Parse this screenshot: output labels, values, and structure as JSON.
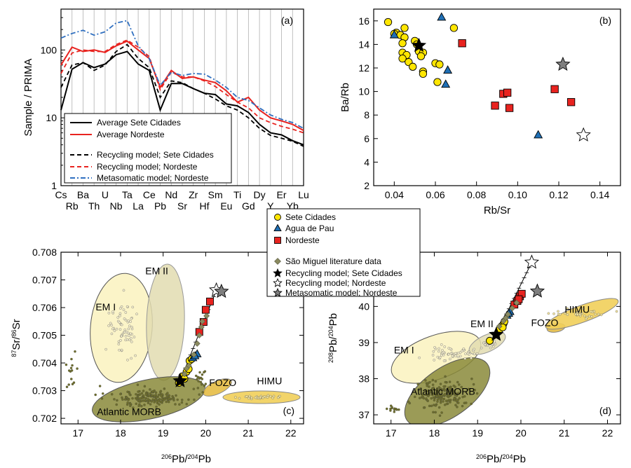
{
  "chart_data": [
    {
      "panel": "a",
      "panel_label": "(a)",
      "type": "line",
      "ylabel": "Sample / PRIMA",
      "yscale": "log",
      "ylim": [
        1,
        400
      ],
      "yticks": [
        "1",
        "10",
        "100"
      ],
      "categories": [
        "Cs",
        "Rb",
        "Ba",
        "Th",
        "U",
        "Nb",
        "Ta",
        "La",
        "Ce",
        "Pb",
        "Nd",
        "Sr",
        "Zr",
        "Hf",
        "Sm",
        "Eu",
        "Ti",
        "Gd",
        "Dy",
        "Y",
        "Er",
        "Yb",
        "Lu"
      ],
      "vertical_grid": true,
      "legend_position": "bottom-left",
      "series": [
        {
          "name": "Average Sete Cidades",
          "color": "#000000",
          "dash": "solid",
          "values": [
            13,
            52,
            65,
            55,
            62,
            85,
            95,
            62,
            50,
            13,
            32,
            32,
            27,
            23,
            22,
            16,
            15,
            12,
            8,
            6,
            5.6,
            4.6,
            4
          ]
        },
        {
          "name": "Average Nordeste",
          "color": "#e8231f",
          "dash": "solid",
          "values": [
            60,
            110,
            95,
            100,
            92,
            115,
            135,
            100,
            75,
            28,
            50,
            38,
            40,
            36,
            33,
            25,
            17,
            20,
            13,
            10,
            9,
            8,
            6.5
          ]
        },
        {
          "name": "Recycling model; Sete Cidades",
          "color": "#000000",
          "dash": "dashed",
          "values": [
            28,
            60,
            65,
            50,
            60,
            95,
            120,
            75,
            55,
            20,
            35,
            33,
            27,
            23,
            19,
            15,
            13,
            10,
            7,
            5.5,
            5,
            4.5,
            3.8
          ]
        },
        {
          "name": "Recycling model; Nordeste",
          "color": "#e8231f",
          "dash": "dashed",
          "values": [
            45,
            90,
            100,
            95,
            95,
            120,
            140,
            110,
            80,
            26,
            47,
            40,
            40,
            35,
            29,
            22,
            17,
            14,
            10,
            8.5,
            7.5,
            6.8,
            6
          ]
        },
        {
          "name": "Metasomatic model; Nordeste",
          "color": "#2f6fc0",
          "dash": "dashdot",
          "values": [
            150,
            175,
            195,
            165,
            185,
            250,
            270,
            115,
            75,
            30,
            47,
            42,
            45,
            44,
            36,
            28,
            20,
            18,
            14,
            11,
            9.5,
            8.5,
            7
          ]
        }
      ]
    },
    {
      "panel": "b",
      "panel_label": "(b)",
      "type": "scatter",
      "xlabel": "Rb/Sr",
      "ylabel": "Ba/Rb",
      "xlim": [
        0.03,
        0.15
      ],
      "ylim": [
        2,
        17
      ],
      "xticks": [
        "0.04",
        "0.06",
        "0.08",
        "0.10",
        "0.12",
        "0.14"
      ],
      "yticks": [
        "2",
        "4",
        "6",
        "8",
        "10",
        "12",
        "14",
        "16"
      ],
      "series": [
        {
          "name": "Sete Cidades",
          "marker": "circle",
          "color": "#ffe600",
          "points": [
            [
              0.037,
              15.9
            ],
            [
              0.041,
              15.0
            ],
            [
              0.04,
              14.9
            ],
            [
              0.045,
              15.4
            ],
            [
              0.043,
              14.8
            ],
            [
              0.045,
              14.6
            ],
            [
              0.044,
              14.1
            ],
            [
              0.044,
              13.3
            ],
            [
              0.046,
              13.1
            ],
            [
              0.044,
              12.8
            ],
            [
              0.047,
              12.5
            ],
            [
              0.049,
              12.1
            ],
            [
              0.05,
              14.3
            ],
            [
              0.051,
              14.0
            ],
            [
              0.052,
              13.4
            ],
            [
              0.054,
              13.3
            ],
            [
              0.053,
              13.0
            ],
            [
              0.054,
              11.7
            ],
            [
              0.054,
              11.5
            ],
            [
              0.06,
              12.4
            ],
            [
              0.062,
              12.3
            ],
            [
              0.061,
              10.8
            ],
            [
              0.069,
              15.4
            ]
          ]
        },
        {
          "name": "Agua de Pau",
          "marker": "triangle",
          "color": "#1f6fb5",
          "points": [
            [
              0.04,
              14.8
            ],
            [
              0.063,
              16.3
            ],
            [
              0.066,
              11.8
            ],
            [
              0.065,
              10.6
            ],
            [
              0.11,
              6.3
            ]
          ]
        },
        {
          "name": "Nordeste",
          "marker": "square",
          "color": "#e8231f",
          "points": [
            [
              0.073,
              14.1
            ],
            [
              0.089,
              8.8
            ],
            [
              0.093,
              9.8
            ],
            [
              0.095,
              9.9
            ],
            [
              0.096,
              8.6
            ],
            [
              0.118,
              10.2
            ],
            [
              0.126,
              9.1
            ]
          ]
        },
        {
          "name": "Recycling model; Sete Cidades",
          "marker": "star",
          "color": "#000000",
          "points": [
            [
              0.052,
              13.9
            ]
          ]
        },
        {
          "name": "Recycling model; Nordeste",
          "marker": "star",
          "color": "#ffffff",
          "points": [
            [
              0.132,
              6.3
            ]
          ]
        },
        {
          "name": "Metasomatic model; Nordeste",
          "marker": "star",
          "color": "#7f7f7f",
          "points": [
            [
              0.122,
              12.3
            ]
          ]
        }
      ]
    },
    {
      "panel": "c",
      "panel_label": "(c)",
      "type": "scatter",
      "xlabel_base": "Pb/",
      "xlabel_parts": [
        "206",
        "Pb/",
        "204",
        "Pb"
      ],
      "ylabel_parts": [
        "87",
        "Sr/",
        "86",
        "Sr"
      ],
      "xlim": [
        16.6,
        22.3
      ],
      "ylim": [
        0.7018,
        0.708
      ],
      "xticks": [
        "17",
        "18",
        "19",
        "20",
        "21",
        "22"
      ],
      "yticks": [
        "0.702",
        "0.703",
        "0.704",
        "0.705",
        "0.706",
        "0.707",
        "0.708"
      ],
      "field_labels": [
        {
          "text": "EM I",
          "x": 17.65,
          "y": 0.7059
        },
        {
          "text": "EM II",
          "x": 18.85,
          "y": 0.7072
        },
        {
          "text": "FOZO",
          "x": 20.4,
          "y": 0.70317
        },
        {
          "text": "HIMU",
          "x": 21.5,
          "y": 0.70323
        },
        {
          "text": "Atlantic MORB",
          "x": 18.2,
          "y": 0.70212
        }
      ],
      "series": [
        {
          "name": "Sete Cidades",
          "marker": "circle",
          "color": "#ffe600",
          "points": [
            [
              19.37,
              0.70328
            ],
            [
              19.45,
              0.70352
            ],
            [
              19.55,
              0.70368
            ],
            [
              19.6,
              0.70378
            ],
            [
              19.62,
              0.70408
            ],
            [
              19.67,
              0.70414
            ],
            [
              19.5,
              0.70343
            ]
          ]
        },
        {
          "name": "Agua de Pau",
          "marker": "triangle",
          "color": "#1f6fb5",
          "points": [
            [
              19.7,
              0.70418
            ],
            [
              19.8,
              0.70432
            ],
            [
              19.75,
              0.70425
            ]
          ]
        },
        {
          "name": "Nordeste",
          "marker": "square",
          "color": "#e8231f",
          "points": [
            [
              19.85,
              0.70512
            ],
            [
              19.95,
              0.70548
            ],
            [
              20.0,
              0.70592
            ],
            [
              20.1,
              0.70622
            ]
          ]
        },
        {
          "name": "São Miguel literature data",
          "marker": "diamond",
          "color": "#8a8a60",
          "points": [
            [
              19.5,
              0.7036
            ],
            [
              19.6,
              0.7039
            ],
            [
              19.72,
              0.7043
            ],
            [
              19.8,
              0.7047
            ],
            [
              19.9,
              0.7053
            ],
            [
              19.92,
              0.7055
            ],
            [
              20.02,
              0.7057
            ],
            [
              19.55,
              0.7038
            ],
            [
              19.85,
              0.705
            ]
          ]
        },
        {
          "name": "Recycling model; Sete Cidades",
          "marker": "star",
          "color": "#000000",
          "points": [
            [
              19.4,
              0.70335
            ]
          ]
        },
        {
          "name": "Recycling model; Nordeste",
          "marker": "star",
          "color": "#ffffff",
          "points": [
            [
              20.25,
              0.70663
            ]
          ]
        },
        {
          "name": "Metasomatic model; Nordeste",
          "marker": "star",
          "color": "#7f7f7f",
          "points": [
            [
              20.37,
              0.70658
            ]
          ]
        }
      ]
    },
    {
      "panel": "d",
      "panel_label": "(d)",
      "type": "scatter",
      "xlabel_parts": [
        "206",
        "Pb/",
        "204",
        "Pb"
      ],
      "ylabel_parts": [
        "208",
        "Pb/",
        "204",
        "Pb"
      ],
      "xlim": [
        16.6,
        22.3
      ],
      "ylim": [
        36.75,
        41.5
      ],
      "xticks": [
        "17",
        "18",
        "19",
        "20",
        "21",
        "22"
      ],
      "yticks": [
        "37",
        "38",
        "39",
        "40"
      ],
      "field_labels": [
        {
          "text": "EM I",
          "x": 17.3,
          "y": 38.7
        },
        {
          "text": "EM II",
          "x": 19.1,
          "y": 39.43
        },
        {
          "text": "FOZO",
          "x": 20.55,
          "y": 39.45
        },
        {
          "text": "HIMU",
          "x": 21.3,
          "y": 39.82
        },
        {
          "text": "Atlantic MORB",
          "x": 18.2,
          "y": 37.55
        }
      ],
      "series": [
        {
          "name": "Sete Cidades",
          "marker": "circle",
          "color": "#ffe600",
          "points": [
            [
              19.28,
              39.05
            ],
            [
              19.5,
              39.35
            ],
            [
              19.55,
              39.45
            ],
            [
              19.6,
              39.52
            ],
            [
              19.62,
              39.58
            ],
            [
              19.58,
              39.42
            ]
          ]
        },
        {
          "name": "Agua de Pau",
          "marker": "triangle",
          "color": "#1f6fb5",
          "points": [
            [
              19.68,
              39.75
            ],
            [
              19.75,
              39.85
            ],
            [
              19.72,
              39.8
            ]
          ]
        },
        {
          "name": "Nordeste",
          "marker": "square",
          "color": "#e8231f",
          "points": [
            [
              19.85,
              40.05
            ],
            [
              19.92,
              40.15
            ],
            [
              19.98,
              40.28
            ],
            [
              20.02,
              40.35
            ],
            [
              19.95,
              40.2
            ]
          ]
        },
        {
          "name": "São Miguel literature data",
          "marker": "diamond",
          "color": "#8a8a60",
          "points": [
            [
              19.6,
              39.6
            ],
            [
              19.7,
              39.78
            ],
            [
              19.8,
              39.95
            ],
            [
              19.9,
              40.1
            ],
            [
              19.5,
              39.45
            ],
            [
              19.65,
              39.68
            ]
          ]
        },
        {
          "name": "Recycling model; Sete Cidades",
          "marker": "star",
          "color": "#000000",
          "points": [
            [
              19.43,
              39.22
            ]
          ]
        },
        {
          "name": "Recycling model; Nordeste",
          "marker": "star",
          "color": "#ffffff",
          "points": [
            [
              20.25,
              41.22
            ]
          ]
        },
        {
          "name": "Metasomatic model; Nordeste",
          "marker": "star",
          "color": "#7f7f7f",
          "points": [
            [
              20.38,
              40.42
            ]
          ]
        }
      ]
    }
  ],
  "shared_legend": {
    "items": [
      {
        "label": "Sete Cidades",
        "marker": "circle",
        "color": "#ffe600"
      },
      {
        "label": "Agua de Pau",
        "marker": "triangle",
        "color": "#1f6fb5"
      },
      {
        "label": "Nordeste",
        "marker": "square",
        "color": "#e8231f"
      },
      {
        "label": "São Miguel literature data",
        "marker": "diamond",
        "color": "#8a8a60"
      },
      {
        "label": "Recycling model; Sete Cidades",
        "marker": "star",
        "color": "#000000"
      },
      {
        "label": "Recycling model; Nordeste",
        "marker": "star",
        "color": "#ffffff"
      },
      {
        "label": "Metasomatic model; Nordeste",
        "marker": "star",
        "color": "#7f7f7f"
      }
    ]
  }
}
